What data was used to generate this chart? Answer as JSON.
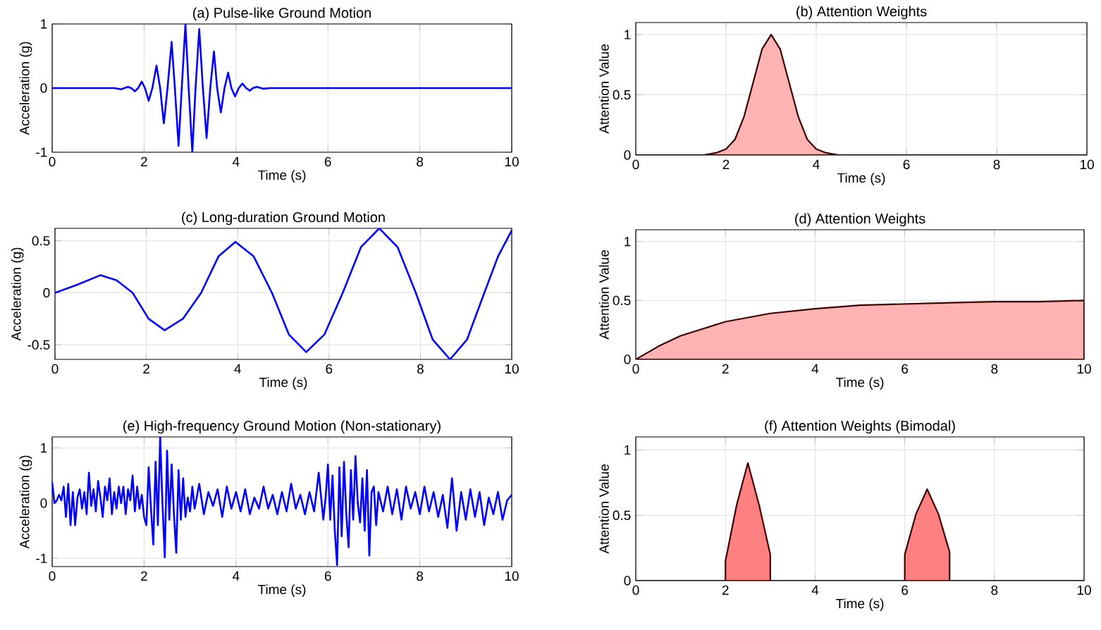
{
  "chart_data": [
    {
      "type": "line",
      "title": "(a) Pulse-like Ground Motion",
      "xlabel": "Time (s)",
      "ylabel": "Acceleration (g)",
      "xlim": [
        0,
        10
      ],
      "ylim": [
        -1,
        1
      ],
      "xticks": [
        0,
        2,
        4,
        6,
        8,
        10
      ],
      "yticks": [
        -1,
        0,
        1
      ],
      "grid": true,
      "series": [
        {
          "color": "#0000ff",
          "x": [
            0,
            1.35,
            1.5,
            1.57,
            1.65,
            1.72,
            1.8,
            1.87,
            1.95,
            2.02,
            2.1,
            2.18,
            2.27,
            2.35,
            2.43,
            2.51,
            2.6,
            2.67,
            2.75,
            2.82,
            2.9,
            2.97,
            3.05,
            3.12,
            3.2,
            3.28,
            3.36,
            3.44,
            3.52,
            3.59,
            3.67,
            3.75,
            3.83,
            3.9,
            3.98,
            4.06,
            4.14,
            4.22,
            4.3,
            4.37,
            4.45,
            4.6,
            4.75,
            10
          ],
          "values": [
            0,
            0,
            -0.02,
            0,
            0.02,
            0,
            -0.05,
            0,
            0.1,
            0,
            -0.2,
            0,
            0.35,
            0,
            -0.55,
            0,
            0.72,
            0,
            -0.9,
            0,
            1.0,
            0,
            -1.0,
            0,
            0.92,
            0,
            -0.78,
            0,
            0.57,
            0,
            -0.38,
            0,
            0.24,
            0,
            -0.13,
            0,
            0.07,
            0,
            -0.04,
            0,
            0.02,
            -0.01,
            0,
            0
          ]
        }
      ]
    },
    {
      "type": "area",
      "title": "(b) Attention Weights",
      "xlabel": "Time (s)",
      "ylabel": "Attention Value",
      "xlim": [
        0,
        10
      ],
      "ylim": [
        0,
        1.1
      ],
      "xticks": [
        0,
        2,
        4,
        6,
        8,
        10
      ],
      "yticks": [
        0,
        0.5,
        1
      ],
      "grid": true,
      "series": [
        {
          "color": "#ffb3b3",
          "x": [
            0,
            1.5,
            1.8,
            2.0,
            2.2,
            2.4,
            2.6,
            2.8,
            3.0,
            3.2,
            3.4,
            3.6,
            3.8,
            4.0,
            4.2,
            4.5,
            10
          ],
          "values": [
            0,
            0,
            0.02,
            0.05,
            0.13,
            0.32,
            0.6,
            0.88,
            1.0,
            0.88,
            0.6,
            0.32,
            0.13,
            0.05,
            0.02,
            0,
            0
          ]
        }
      ]
    },
    {
      "type": "line",
      "title": "(c) Long-duration Ground Motion",
      "xlabel": "Time (s)",
      "ylabel": "Acceleration (g)",
      "xlim": [
        0,
        10
      ],
      "ylim": [
        -0.64,
        0.62
      ],
      "xticks": [
        0,
        2,
        4,
        6,
        8,
        10
      ],
      "yticks": [
        -0.5,
        0,
        0.5
      ],
      "grid": true,
      "series": [
        {
          "color": "#0000ff",
          "x": [
            0,
            0.5,
            1,
            1.35,
            1.7,
            2.05,
            2.4,
            2.8,
            3.2,
            3.58,
            3.95,
            4.35,
            4.75,
            5.12,
            5.5,
            5.9,
            6.3,
            6.7,
            7.1,
            7.5,
            7.9,
            8.27,
            8.65,
            9.02,
            9.4,
            9.7,
            10
          ],
          "values": [
            0,
            0.08,
            0.17,
            0.12,
            0,
            -0.25,
            -0.36,
            -0.25,
            0,
            0.35,
            0.49,
            0.35,
            0,
            -0.4,
            -0.57,
            -0.4,
            0,
            0.44,
            0.62,
            0.44,
            0,
            -0.45,
            -0.64,
            -0.45,
            0,
            0.35,
            0.6
          ]
        }
      ]
    },
    {
      "type": "area",
      "title": "(d) Attention Weights",
      "xlabel": "Time (s)",
      "ylabel": "Attention Value",
      "xlim": [
        0,
        10
      ],
      "ylim": [
        0,
        1.1
      ],
      "xticks": [
        0,
        2,
        4,
        6,
        8,
        10
      ],
      "yticks": [
        0,
        0.5,
        1
      ],
      "grid": true,
      "series": [
        {
          "color": "#ffb3b3",
          "x": [
            0,
            0.5,
            1,
            1.5,
            2,
            3,
            4,
            5,
            6,
            7,
            8,
            9,
            10
          ],
          "values": [
            0,
            0.11,
            0.2,
            0.26,
            0.32,
            0.39,
            0.43,
            0.46,
            0.47,
            0.48,
            0.49,
            0.49,
            0.5
          ]
        }
      ]
    },
    {
      "type": "line",
      "title": "(e) High-frequency Ground Motion (Non-stationary)",
      "xlabel": "Time (s)",
      "ylabel": "Acceleration (g)",
      "xlim": [
        0,
        10
      ],
      "ylim": [
        -1.15,
        1.2
      ],
      "xticks": [
        0,
        2,
        4,
        6,
        8,
        10
      ],
      "yticks": [
        -1,
        0,
        1
      ],
      "grid": true,
      "series": [
        {
          "color": "#0000ff",
          "x": [
            0,
            0.05,
            0.1,
            0.15,
            0.2,
            0.25,
            0.3,
            0.35,
            0.4,
            0.45,
            0.5,
            0.55,
            0.6,
            0.65,
            0.7,
            0.75,
            0.8,
            0.85,
            0.9,
            0.95,
            1.0,
            1.05,
            1.1,
            1.15,
            1.2,
            1.25,
            1.3,
            1.35,
            1.4,
            1.45,
            1.5,
            1.55,
            1.6,
            1.65,
            1.7,
            1.75,
            1.8,
            1.85,
            1.9,
            1.95,
            2.0,
            2.05,
            2.1,
            2.15,
            2.2,
            2.25,
            2.3,
            2.35,
            2.4,
            2.45,
            2.5,
            2.55,
            2.6,
            2.65,
            2.7,
            2.75,
            2.8,
            2.85,
            2.9,
            2.95,
            3.0,
            3.05,
            3.1,
            3.2,
            3.3,
            3.4,
            3.5,
            3.6,
            3.7,
            3.8,
            3.9,
            4.0,
            4.1,
            4.2,
            4.3,
            4.4,
            4.5,
            4.6,
            4.7,
            4.8,
            4.9,
            5.0,
            5.1,
            5.2,
            5.3,
            5.4,
            5.5,
            5.6,
            5.7,
            5.8,
            5.9,
            5.95,
            6.0,
            6.05,
            6.1,
            6.15,
            6.2,
            6.25,
            6.3,
            6.35,
            6.4,
            6.45,
            6.5,
            6.55,
            6.6,
            6.65,
            6.7,
            6.75,
            6.8,
            6.85,
            6.9,
            6.95,
            7.0,
            7.05,
            7.1,
            7.2,
            7.3,
            7.4,
            7.5,
            7.6,
            7.7,
            7.8,
            7.9,
            8.0,
            8.1,
            8.2,
            8.3,
            8.4,
            8.5,
            8.6,
            8.7,
            8.8,
            8.9,
            9.0,
            9.1,
            9.2,
            9.3,
            9.4,
            9.5,
            9.6,
            9.7,
            9.8,
            9.9,
            10
          ],
          "values": [
            0.38,
            0.0,
            0.05,
            0.15,
            0.05,
            0.3,
            -0.25,
            0.35,
            -0.4,
            0.2,
            -0.4,
            0.1,
            0.25,
            -0.1,
            0.2,
            -0.2,
            0.55,
            -0.05,
            0.25,
            -0.15,
            0.4,
            0.1,
            -0.25,
            0.3,
            0.05,
            0.45,
            -0.2,
            0.2,
            -0.1,
            0.3,
            0.0,
            0.3,
            -0.2,
            0.25,
            0.05,
            0.5,
            -0.15,
            0.3,
            -0.1,
            0.15,
            -0.25,
            -0.4,
            0.65,
            -0.1,
            -0.75,
            0.75,
            -0.4,
            1.2,
            0.0,
            -0.98,
            0.95,
            -0.3,
            0.7,
            -0.2,
            -0.9,
            0.6,
            -0.3,
            0.45,
            -0.25,
            0.1,
            -0.15,
            0.3,
            -0.1,
            0.35,
            -0.2,
            0.2,
            -0.05,
            0.25,
            -0.25,
            0.3,
            -0.1,
            0.2,
            -0.15,
            0.25,
            -0.2,
            0.1,
            -0.1,
            0.3,
            -0.1,
            0.15,
            -0.2,
            0.2,
            -0.15,
            0.35,
            -0.1,
            0.15,
            -0.2,
            0.2,
            -0.15,
            0.55,
            -0.3,
            0.1,
            0.7,
            -0.3,
            0.5,
            -0.5,
            -1.12,
            0.65,
            -0.6,
            0.75,
            -0.2,
            -0.8,
            0.6,
            -0.3,
            0.85,
            0.0,
            -0.35,
            0.45,
            -0.5,
            0.6,
            -0.95,
            0.2,
            0.3,
            -0.4,
            0.2,
            -0.15,
            0.3,
            -0.2,
            0.25,
            -0.3,
            0.3,
            -0.1,
            0.2,
            -0.2,
            0.3,
            -0.15,
            0.2,
            -0.25,
            0.15,
            -0.45,
            0.45,
            -0.5,
            0.2,
            -0.3,
            0.25,
            -0.25,
            0.2,
            -0.4,
            0.1,
            -0.2,
            0.2,
            -0.3,
            0.05,
            0.15
          ]
        }
      ]
    },
    {
      "type": "area",
      "title": "(f) Attention Weights (Bimodal)",
      "xlabel": "Time (s)",
      "ylabel": "Attention Value",
      "xlim": [
        0,
        10
      ],
      "ylim": [
        0,
        1.1
      ],
      "xticks": [
        0,
        2,
        4,
        6,
        8,
        10
      ],
      "yticks": [
        0,
        0.5,
        1
      ],
      "grid": true,
      "series": [
        {
          "color": "#ff8080",
          "x": [
            0,
            2,
            2,
            2.25,
            2.5,
            2.75,
            3,
            3,
            6,
            6,
            6.25,
            6.5,
            6.75,
            7,
            7,
            10
          ],
          "values": [
            0,
            0,
            0.15,
            0.58,
            0.9,
            0.58,
            0.2,
            0,
            0,
            0.2,
            0.51,
            0.7,
            0.51,
            0.22,
            0,
            0
          ]
        }
      ]
    }
  ]
}
